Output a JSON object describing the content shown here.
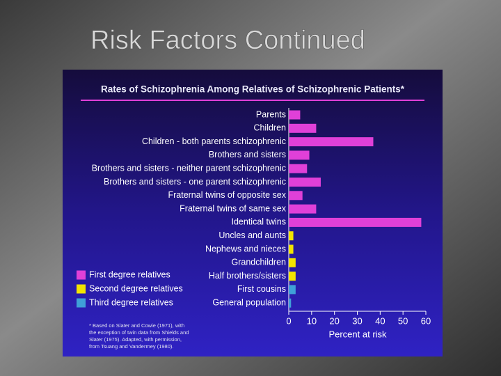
{
  "slide_title": "Risk Factors Continued",
  "chart_data": {
    "type": "bar",
    "title": "Rates of Schizophrenia Among Relatives of Schizophrenic Patients*",
    "categories": [
      "Parents",
      "Children",
      "Children - both parents schizophrenic",
      "Brothers and sisters",
      "Brothers and sisters - neither parent schizophrenic",
      "Brothers and sisters - one parent schizophrenic",
      "Fraternal twins of opposite sex",
      "Fraternal twins of same sex",
      "Identical twins",
      "Uncles and aunts",
      "Nephews and nieces",
      "Grandchildren",
      "Half brothers/sisters",
      "First cousins",
      "General population"
    ],
    "values": [
      5,
      12,
      37,
      9,
      8,
      14,
      6,
      12,
      58,
      2,
      2,
      3,
      3,
      3,
      1
    ],
    "colors": [
      "#e040d8",
      "#e040d8",
      "#e040d8",
      "#e040d8",
      "#e040d8",
      "#e040d8",
      "#e040d8",
      "#e040d8",
      "#e040d8",
      "#f2e400",
      "#f2e400",
      "#f2e400",
      "#f2e400",
      "#3fa0d8",
      "#3fa0d8"
    ],
    "legend": [
      {
        "name": "First degree relatives",
        "color": "#e040d8"
      },
      {
        "name": "Second degree relatives",
        "color": "#f2e400"
      },
      {
        "name": "Third degree relatives",
        "color": "#3fa0d8"
      }
    ],
    "xlabel": "Percent at risk",
    "xlim": [
      0,
      60
    ],
    "xticks": [
      0,
      10,
      20,
      30,
      40,
      50,
      60
    ],
    "footnote": [
      "* Based on Slater and Cowie (1971), with",
      "the exception of twin data from Shields and",
      "Slater (1975). Adapted, with permission,",
      "from Tsuang and Vandermey (1980)."
    ]
  }
}
